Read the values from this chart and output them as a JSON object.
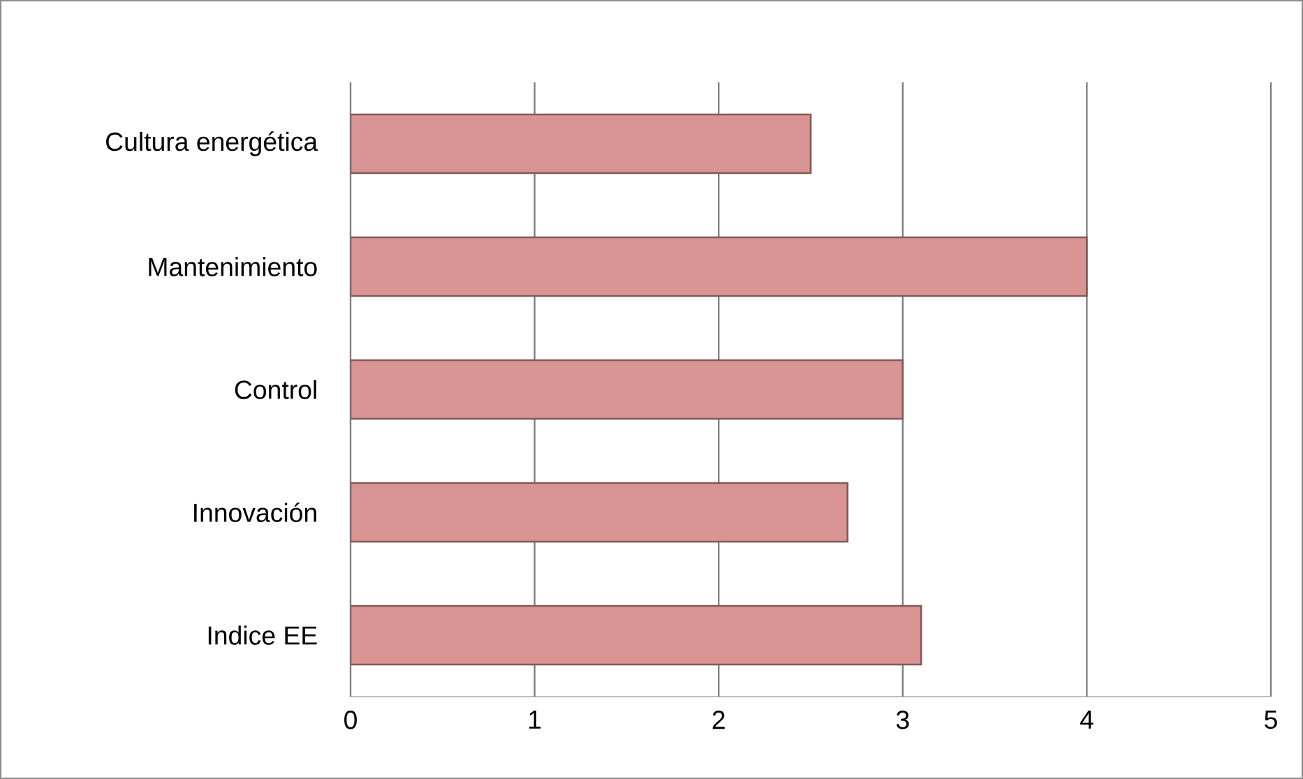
{
  "chart_data": {
    "type": "bar",
    "orientation": "horizontal",
    "categories": [
      "Cultura energética",
      "Mantenimiento",
      "Control",
      "Innovación",
      "Indice EE"
    ],
    "values": [
      2.5,
      4,
      3,
      2.7,
      3.1
    ],
    "color": "#d99594",
    "xlim": [
      0,
      5
    ],
    "xticks": [
      0,
      1,
      2,
      3,
      4,
      5
    ],
    "grid": "x"
  }
}
